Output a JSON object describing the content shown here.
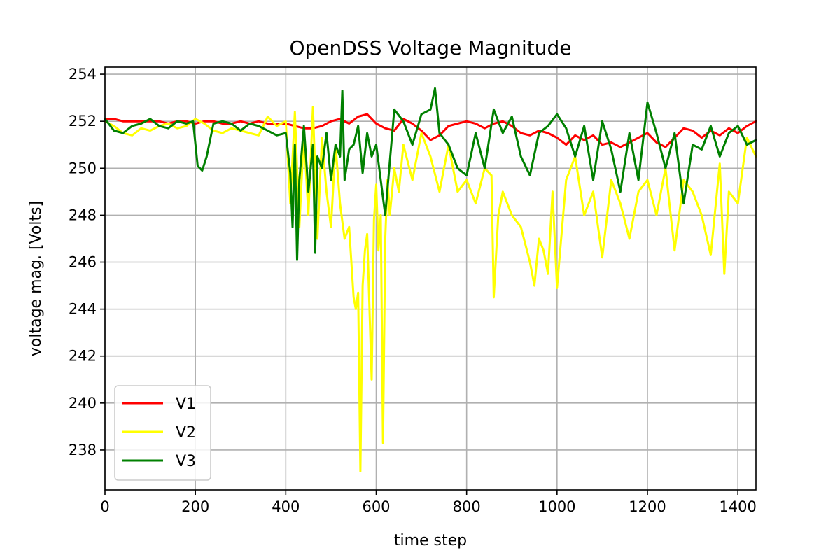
{
  "chart_data": {
    "type": "line",
    "title": "OpenDSS Voltage Magnitude",
    "xlabel": "time step",
    "ylabel": "voltage mag. [Volts]",
    "xlim": [
      0,
      1440
    ],
    "ylim": [
      236.3,
      254.3
    ],
    "xticks": [
      0,
      200,
      400,
      600,
      800,
      1000,
      1200,
      1400
    ],
    "yticks": [
      238,
      240,
      242,
      244,
      246,
      248,
      250,
      252,
      254
    ],
    "grid": true,
    "legend_position": "lower-left",
    "series": [
      {
        "name": "V1",
        "color": "#ff0000",
        "x": [
          0,
          20,
          40,
          60,
          80,
          100,
          120,
          140,
          160,
          180,
          200,
          220,
          240,
          260,
          280,
          300,
          320,
          340,
          360,
          380,
          400,
          420,
          440,
          460,
          480,
          500,
          520,
          540,
          560,
          580,
          600,
          620,
          640,
          660,
          680,
          700,
          720,
          740,
          760,
          780,
          800,
          820,
          840,
          860,
          880,
          900,
          920,
          940,
          960,
          980,
          1000,
          1020,
          1040,
          1060,
          1080,
          1100,
          1120,
          1140,
          1160,
          1180,
          1200,
          1220,
          1240,
          1260,
          1280,
          1300,
          1320,
          1340,
          1360,
          1380,
          1400,
          1420,
          1440
        ],
        "values": [
          252.1,
          252.1,
          252.0,
          252.0,
          252.0,
          252.0,
          252.0,
          251.9,
          252.0,
          252.0,
          251.9,
          252.0,
          252.0,
          251.9,
          251.9,
          252.0,
          251.9,
          252.0,
          251.9,
          251.9,
          251.9,
          251.8,
          251.7,
          251.7,
          251.8,
          252.0,
          252.1,
          251.9,
          252.2,
          252.3,
          251.9,
          251.7,
          251.6,
          252.1,
          251.9,
          251.6,
          251.2,
          251.4,
          251.8,
          251.9,
          252.0,
          251.9,
          251.7,
          251.9,
          252.0,
          251.8,
          251.5,
          251.4,
          251.6,
          251.5,
          251.3,
          251.0,
          251.4,
          251.2,
          251.4,
          251.0,
          251.1,
          250.9,
          251.1,
          251.3,
          251.5,
          251.1,
          250.9,
          251.3,
          251.7,
          251.6,
          251.3,
          251.6,
          251.4,
          251.7,
          251.5,
          251.8,
          252.0
        ]
      },
      {
        "name": "V2",
        "color": "#ffff00",
        "x": [
          0,
          20,
          40,
          60,
          80,
          100,
          120,
          140,
          160,
          180,
          200,
          220,
          240,
          260,
          280,
          300,
          320,
          340,
          360,
          380,
          400,
          410,
          420,
          430,
          440,
          450,
          460,
          470,
          480,
          490,
          500,
          510,
          520,
          530,
          540,
          550,
          555,
          560,
          565,
          570,
          575,
          580,
          590,
          595,
          600,
          605,
          610,
          615,
          620,
          625,
          630,
          640,
          650,
          660,
          680,
          700,
          720,
          740,
          760,
          780,
          800,
          820,
          840,
          855,
          860,
          870,
          880,
          900,
          920,
          940,
          950,
          960,
          970,
          980,
          990,
          1000,
          1020,
          1040,
          1060,
          1080,
          1100,
          1120,
          1140,
          1160,
          1180,
          1200,
          1220,
          1240,
          1260,
          1280,
          1300,
          1320,
          1340,
          1360,
          1370,
          1380,
          1400,
          1420,
          1440
        ],
        "values": [
          252.0,
          251.8,
          251.5,
          251.4,
          251.7,
          251.6,
          251.8,
          251.9,
          251.7,
          251.8,
          252.1,
          251.9,
          251.6,
          251.5,
          251.7,
          251.6,
          251.5,
          251.4,
          252.2,
          251.8,
          252.0,
          248.5,
          252.4,
          247.5,
          251.5,
          248.0,
          252.6,
          247.0,
          251.3,
          249.0,
          247.5,
          251.0,
          248.5,
          247.0,
          247.5,
          244.5,
          244.0,
          244.7,
          237.1,
          245.0,
          246.5,
          247.2,
          241.0,
          247.8,
          249.3,
          246.5,
          248.0,
          238.3,
          247.0,
          249.5,
          248.0,
          250.0,
          249.0,
          251.0,
          249.5,
          251.5,
          250.5,
          249.0,
          251.0,
          249.0,
          249.5,
          248.5,
          250.0,
          249.7,
          244.5,
          248.0,
          249.0,
          248.0,
          247.5,
          246.0,
          245.0,
          247.0,
          246.5,
          245.5,
          249.0,
          244.9,
          249.5,
          250.5,
          248.0,
          249.0,
          246.2,
          249.5,
          248.5,
          247.0,
          249.0,
          249.5,
          248.0,
          250.0,
          246.5,
          249.5,
          249.0,
          248.0,
          246.3,
          250.2,
          245.5,
          249.0,
          248.5,
          251.3,
          250.5
        ]
      },
      {
        "name": "V3",
        "color": "#008000",
        "x": [
          0,
          20,
          40,
          60,
          80,
          100,
          120,
          140,
          160,
          180,
          195,
          205,
          215,
          225,
          240,
          260,
          280,
          300,
          320,
          340,
          360,
          380,
          400,
          410,
          415,
          420,
          425,
          430,
          440,
          450,
          460,
          465,
          470,
          480,
          490,
          500,
          510,
          520,
          525,
          530,
          540,
          550,
          560,
          570,
          580,
          590,
          600,
          620,
          640,
          660,
          680,
          700,
          720,
          730,
          740,
          760,
          780,
          800,
          820,
          840,
          860,
          880,
          900,
          920,
          940,
          960,
          980,
          1000,
          1020,
          1040,
          1060,
          1080,
          1100,
          1120,
          1140,
          1160,
          1180,
          1200,
          1220,
          1240,
          1260,
          1280,
          1300,
          1320,
          1340,
          1360,
          1380,
          1400,
          1420,
          1440
        ],
        "values": [
          252.1,
          251.6,
          251.5,
          251.8,
          251.9,
          252.1,
          251.8,
          251.7,
          252.0,
          251.9,
          252.0,
          250.1,
          249.9,
          250.5,
          251.9,
          252.0,
          251.9,
          251.6,
          251.9,
          251.8,
          251.6,
          251.4,
          251.5,
          249.8,
          247.5,
          251.0,
          246.1,
          249.5,
          251.8,
          249.0,
          251.0,
          246.4,
          250.5,
          250.0,
          251.5,
          249.5,
          251.0,
          250.5,
          253.3,
          249.5,
          250.8,
          251.0,
          251.8,
          249.8,
          251.5,
          250.5,
          251.0,
          248.0,
          252.5,
          252.0,
          251.0,
          252.3,
          252.5,
          253.4,
          251.5,
          251.0,
          250.0,
          249.7,
          251.5,
          250.0,
          252.5,
          251.5,
          252.2,
          250.5,
          249.7,
          251.5,
          251.8,
          252.3,
          251.7,
          250.5,
          251.8,
          249.5,
          252.0,
          250.8,
          249.0,
          251.5,
          249.5,
          252.8,
          251.5,
          250.0,
          251.5,
          248.5,
          251.0,
          250.8,
          251.8,
          250.5,
          251.5,
          251.8,
          251.0,
          251.2
        ]
      }
    ]
  }
}
